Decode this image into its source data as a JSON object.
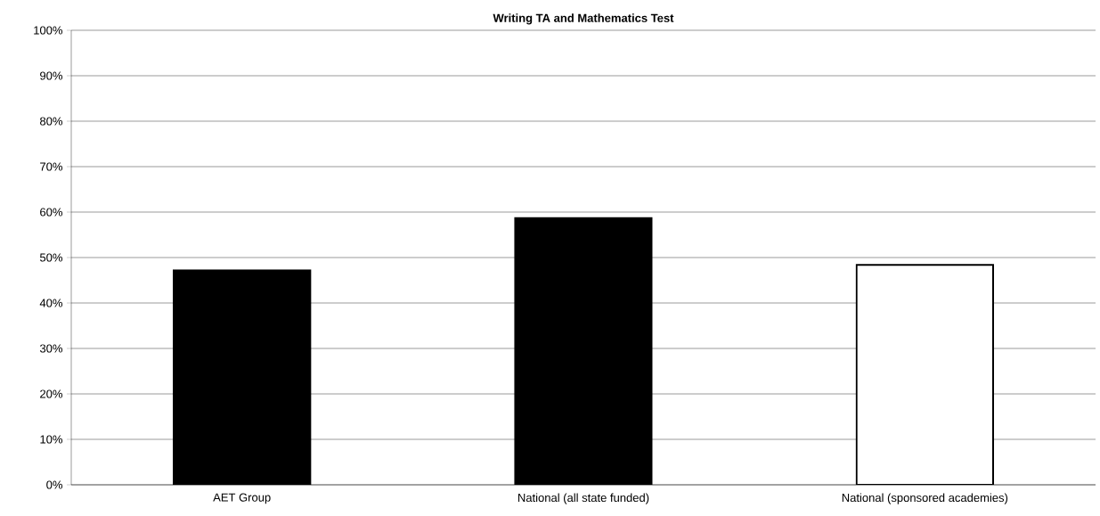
{
  "chart_data": {
    "type": "bar",
    "title": "Writing TA and Mathematics Test",
    "categories": [
      "AET Group",
      "National (all state funded)",
      "National (sponsored academies)"
    ],
    "values": [
      47.2,
      58.7,
      48.4
    ],
    "colors": [
      "#000000",
      "#000000",
      "#ffffff"
    ],
    "ylim": [
      0,
      100
    ],
    "yticks": [
      {
        "value": 0,
        "label": "0%"
      },
      {
        "value": 10,
        "label": "10%"
      },
      {
        "value": 20,
        "label": "20%"
      },
      {
        "value": 30,
        "label": "30%"
      },
      {
        "value": 40,
        "label": "40%"
      },
      {
        "value": 50,
        "label": "50%"
      },
      {
        "value": 60,
        "label": "60%"
      },
      {
        "value": 70,
        "label": "70%"
      },
      {
        "value": 80,
        "label": "80%"
      },
      {
        "value": 90,
        "label": "90%"
      },
      {
        "value": 100,
        "label": "100%"
      }
    ],
    "grid": "y"
  }
}
